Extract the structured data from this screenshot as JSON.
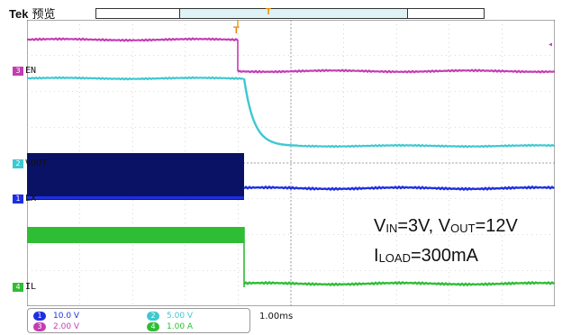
{
  "header": {
    "brand": "Tek",
    "mode": "预览",
    "trigger_marker": "T"
  },
  "colors": {
    "ch1": "#1e2ee0",
    "ch2": "#3ec8d0",
    "ch3": "#c43cb2",
    "ch4": "#2ebd35",
    "ch1_dark": "#0a1266",
    "trigger": "#e08a00",
    "grid": "#b8b8b8"
  },
  "channels": {
    "en": {
      "badge": "3",
      "label": "EN"
    },
    "vout": {
      "badge": "2",
      "label": "VOUT"
    },
    "lx": {
      "badge": "1",
      "label": "LX"
    },
    "il": {
      "badge": "4",
      "label": "IL"
    }
  },
  "annotation": {
    "line1": {
      "v1": "V",
      "s1": "IN",
      "t1": "=3V, V",
      "s2": "OUT",
      "t2": "=12V"
    },
    "line2": {
      "v1": "I",
      "s1": "LOAD",
      "t1": "=300mA"
    }
  },
  "legend": {
    "ch1": {
      "badge": "1",
      "value": "10.0 V"
    },
    "ch2": {
      "badge": "2",
      "value": "5.00 V"
    },
    "ch3": {
      "badge": "3",
      "value": "2.00 V"
    },
    "ch4": {
      "badge": "4",
      "value": "1.00 A"
    }
  },
  "timebase": "1.00ms",
  "ch3_offscreen_arrow": "◂"
}
